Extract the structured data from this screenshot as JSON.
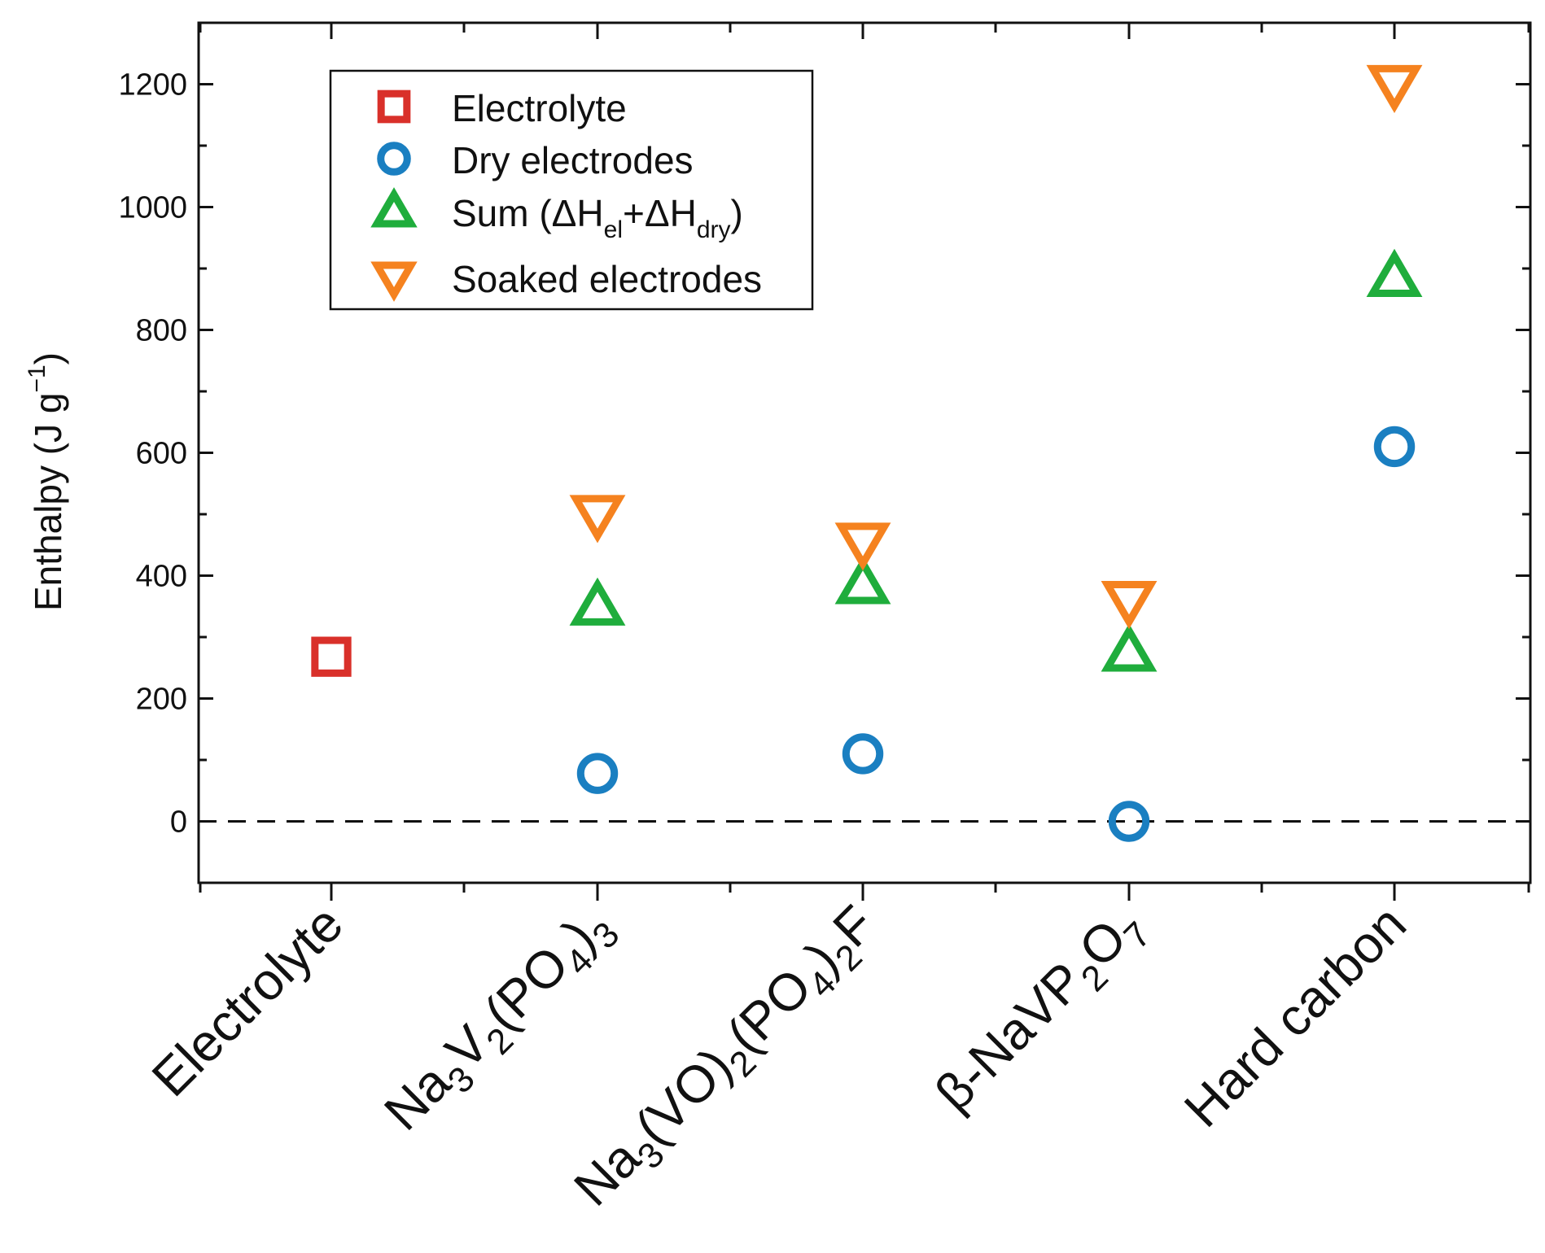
{
  "chart_data": {
    "type": "scatter",
    "title": "",
    "xlabel": "",
    "ylabel": "Enthalpy (J g",
    "ylabel_sup": "−1",
    "ylabel_close": ")",
    "ylim": [
      -100,
      1300
    ],
    "yticks": [
      "0",
      "200",
      "400",
      "600",
      "800",
      "1000",
      "1200"
    ],
    "ytick_values": [
      0,
      200,
      400,
      600,
      800,
      1000,
      1200
    ],
    "reference_line": {
      "y": 0,
      "style": "dashed"
    },
    "categories": [
      "Electrolyte",
      "Na3V2(PO4)3",
      "Na3(VO)2(PO4)2F",
      "β-NaVP2O7",
      "Hard carbon"
    ],
    "category_labels": [
      [
        {
          "t": "Electrolyte",
          "s": "n"
        }
      ],
      [
        {
          "t": "Na",
          "s": "n"
        },
        {
          "t": "3",
          "s": "sub"
        },
        {
          "t": "V",
          "s": "n"
        },
        {
          "t": "2",
          "s": "sub"
        },
        {
          "t": "(PO",
          "s": "n"
        },
        {
          "t": "4",
          "s": "sub"
        },
        {
          "t": ")",
          "s": "n"
        },
        {
          "t": "3",
          "s": "sub"
        }
      ],
      [
        {
          "t": "Na",
          "s": "n"
        },
        {
          "t": "3",
          "s": "sub"
        },
        {
          "t": "(VO)",
          "s": "n"
        },
        {
          "t": "2",
          "s": "sub"
        },
        {
          "t": "(PO",
          "s": "n"
        },
        {
          "t": "4",
          "s": "sub"
        },
        {
          "t": ")",
          "s": "n"
        },
        {
          "t": "2",
          "s": "sub"
        },
        {
          "t": "F",
          "s": "n"
        }
      ],
      [
        {
          "t": "β-NaVP",
          "s": "n"
        },
        {
          "t": "2",
          "s": "sub"
        },
        {
          "t": "O",
          "s": "n"
        },
        {
          "t": "7",
          "s": "sub"
        }
      ],
      [
        {
          "t": "Hard carbon",
          "s": "n"
        }
      ]
    ],
    "series": [
      {
        "name": "Electrolyte",
        "marker": "square",
        "color": "#d9302a",
        "values": [
          268,
          null,
          null,
          null,
          null
        ]
      },
      {
        "name": "Dry electrodes",
        "marker": "circle",
        "color": "#1a7fc1",
        "values": [
          null,
          78,
          110,
          0,
          610
        ]
      },
      {
        "name": "Sum (ΔHel+ΔHdry)",
        "marker": "triangle-up",
        "color": "#1fad3c",
        "values": [
          null,
          350,
          385,
          275,
          885
        ]
      },
      {
        "name": "Soaked electrodes",
        "marker": "triangle-down",
        "color": "#f5821f",
        "values": [
          null,
          500,
          455,
          360,
          1200
        ]
      }
    ],
    "legend": {
      "position": "top-left",
      "entries": [
        [
          {
            "t": "Electrolyte",
            "s": "n"
          }
        ],
        [
          {
            "t": "Dry electrodes",
            "s": "n"
          }
        ],
        [
          {
            "t": "Sum (ΔH",
            "s": "n"
          },
          {
            "t": "el",
            "s": "sub"
          },
          {
            "t": "+ΔH",
            "s": "n"
          },
          {
            "t": "dry",
            "s": "sub"
          },
          {
            "t": ")",
            "s": "n"
          }
        ],
        [
          {
            "t": "Soaked electrodes",
            "s": "n"
          }
        ]
      ]
    }
  }
}
